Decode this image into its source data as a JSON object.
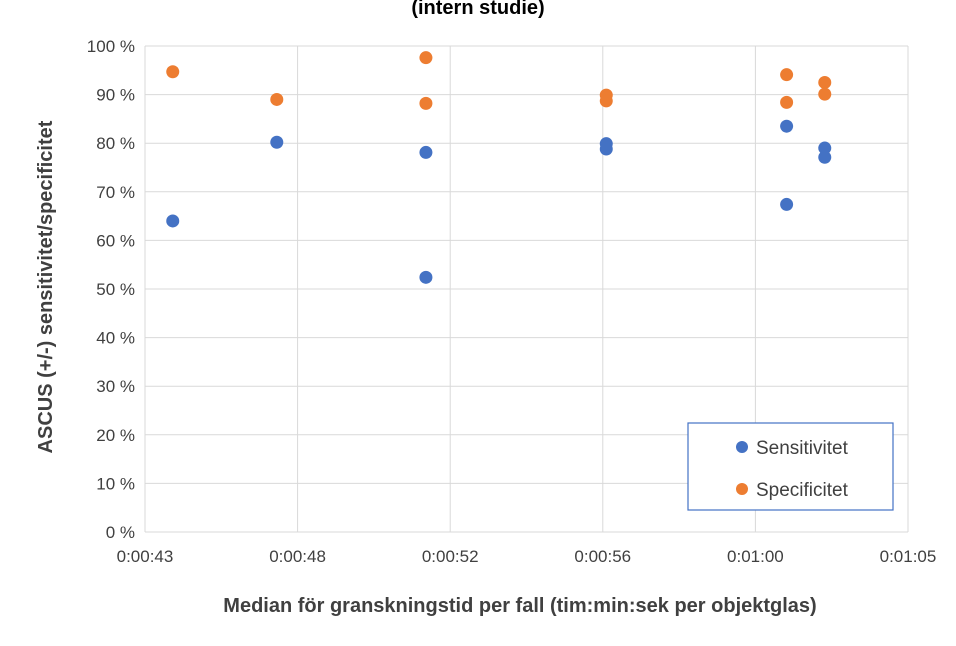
{
  "chart_data": {
    "type": "scatter",
    "title": "(intern studie)",
    "xlabel": "Median för granskningstid per fall (tim:min:sek per objektglas)",
    "ylabel": "ASCUS (+/-) sensitivitet/specificitet",
    "x_unit": "seconds",
    "xlim": [
      43,
      65
    ],
    "ylim": [
      0,
      100
    ],
    "x_ticks": [
      {
        "value": 43,
        "label": "0:00:43"
      },
      {
        "value": 47.4,
        "label": "0:00:48"
      },
      {
        "value": 51.8,
        "label": "0:00:52"
      },
      {
        "value": 56.2,
        "label": "0:00:56"
      },
      {
        "value": 60.6,
        "label": "0:01:00"
      },
      {
        "value": 65,
        "label": "0:01:05"
      }
    ],
    "y_ticks": [
      {
        "value": 0,
        "label": "0 %"
      },
      {
        "value": 10,
        "label": "10 %"
      },
      {
        "value": 20,
        "label": "20 %"
      },
      {
        "value": 30,
        "label": "30 %"
      },
      {
        "value": 40,
        "label": "40 %"
      },
      {
        "value": 50,
        "label": "50 %"
      },
      {
        "value": 60,
        "label": "60 %"
      },
      {
        "value": 70,
        "label": "70 %"
      },
      {
        "value": 80,
        "label": "80 %"
      },
      {
        "value": 90,
        "label": "90 %"
      },
      {
        "value": 100,
        "label": "100 %"
      }
    ],
    "grid": true,
    "legend_position": "bottom-right",
    "series": [
      {
        "name": "Sensitivitet",
        "color": "#4472C4",
        "points": [
          {
            "x": 43.8,
            "y": 64
          },
          {
            "x": 46.8,
            "y": 80.2
          },
          {
            "x": 51.1,
            "y": 78.1
          },
          {
            "x": 51.1,
            "y": 52.4
          },
          {
            "x": 56.3,
            "y": 79.9
          },
          {
            "x": 56.3,
            "y": 78.8
          },
          {
            "x": 61.5,
            "y": 83.5
          },
          {
            "x": 61.5,
            "y": 67.4
          },
          {
            "x": 62.6,
            "y": 79
          },
          {
            "x": 62.6,
            "y": 77.1
          }
        ]
      },
      {
        "name": "Specificitet",
        "color": "#ED7D31",
        "points": [
          {
            "x": 43.8,
            "y": 94.7
          },
          {
            "x": 46.8,
            "y": 89
          },
          {
            "x": 51.1,
            "y": 97.6
          },
          {
            "x": 51.1,
            "y": 88.2
          },
          {
            "x": 56.3,
            "y": 89.9
          },
          {
            "x": 56.3,
            "y": 88.7
          },
          {
            "x": 61.5,
            "y": 94.1
          },
          {
            "x": 61.5,
            "y": 88.4
          },
          {
            "x": 62.6,
            "y": 92.5
          },
          {
            "x": 62.6,
            "y": 90.1
          }
        ]
      }
    ]
  }
}
